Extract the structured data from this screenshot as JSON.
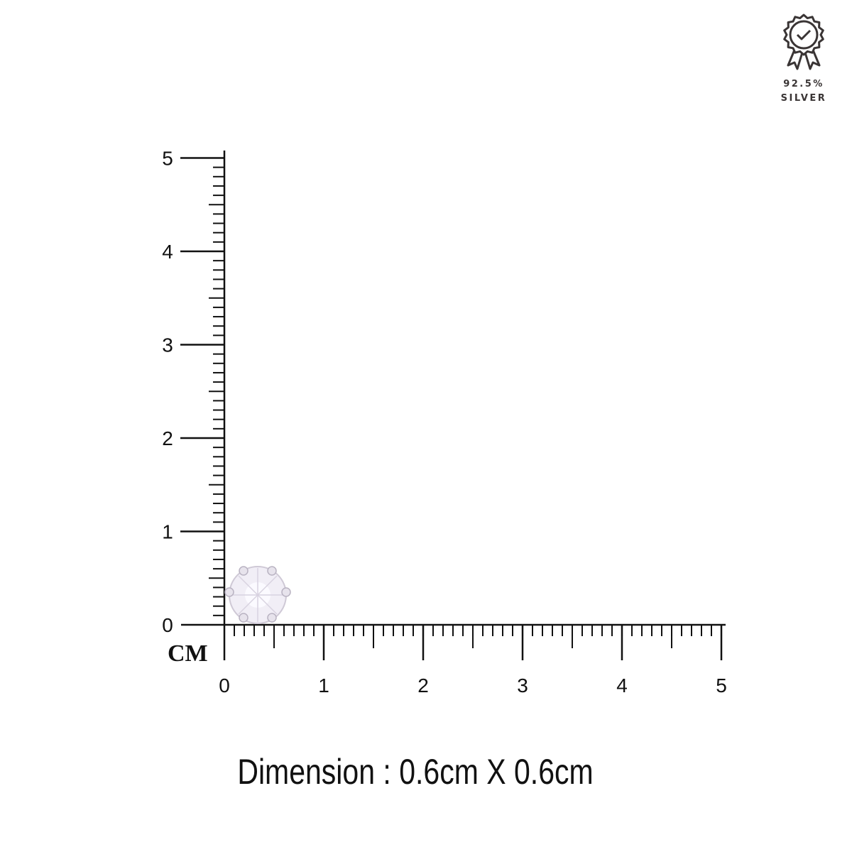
{
  "badge": {
    "icon": "award-ribbon-check-icon",
    "purity": "92.5%",
    "metal": "SILVER"
  },
  "ruler": {
    "unit_label": "CM",
    "x_labels": [
      "0",
      "1",
      "2",
      "3",
      "4",
      "5"
    ],
    "y_labels": [
      "0",
      "1",
      "2",
      "3",
      "4",
      "5"
    ],
    "range_cm": [
      0,
      5
    ]
  },
  "product": {
    "icon": "six-prong-round-stone-icon",
    "size_cm": [
      0.6,
      0.6
    ]
  },
  "dimension": {
    "label": "Dimension :",
    "value": "0.6cm X 0.6cm"
  }
}
